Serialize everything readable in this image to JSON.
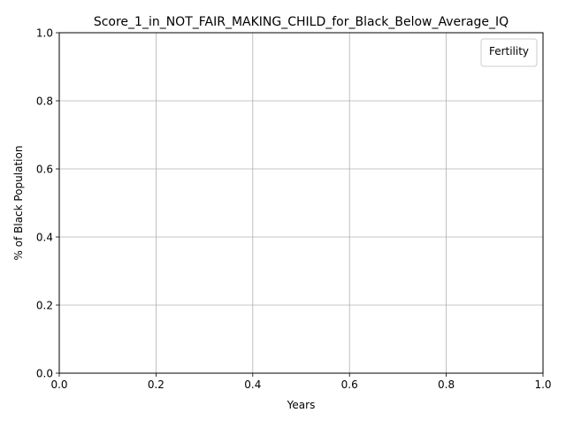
{
  "chart_data": {
    "type": "line",
    "title": "Score_1_in_NOT_FAIR_MAKING_CHILD_for_Black_Below_Average_IQ",
    "xlabel": "Years",
    "ylabel": "% of Black Population",
    "xlim": [
      0.0,
      1.0
    ],
    "ylim": [
      0.0,
      1.0
    ],
    "x_ticks": [
      0.0,
      0.2,
      0.4,
      0.6,
      0.8,
      1.0
    ],
    "y_ticks": [
      0.0,
      0.2,
      0.4,
      0.6,
      0.8,
      1.0
    ],
    "x_tick_labels": [
      "0.0",
      "0.2",
      "0.4",
      "0.6",
      "0.8",
      "1.0"
    ],
    "y_tick_labels": [
      "0.0",
      "0.2",
      "0.4",
      "0.6",
      "0.8",
      "1.0"
    ],
    "grid": true,
    "legend": {
      "title": "Fertility",
      "placement": "top-right",
      "entries": []
    },
    "series": [],
    "colors": {
      "grid": "#b0b0b0",
      "axes": "#000000",
      "legend_border": "#cccccc",
      "background": "#ffffff"
    }
  }
}
